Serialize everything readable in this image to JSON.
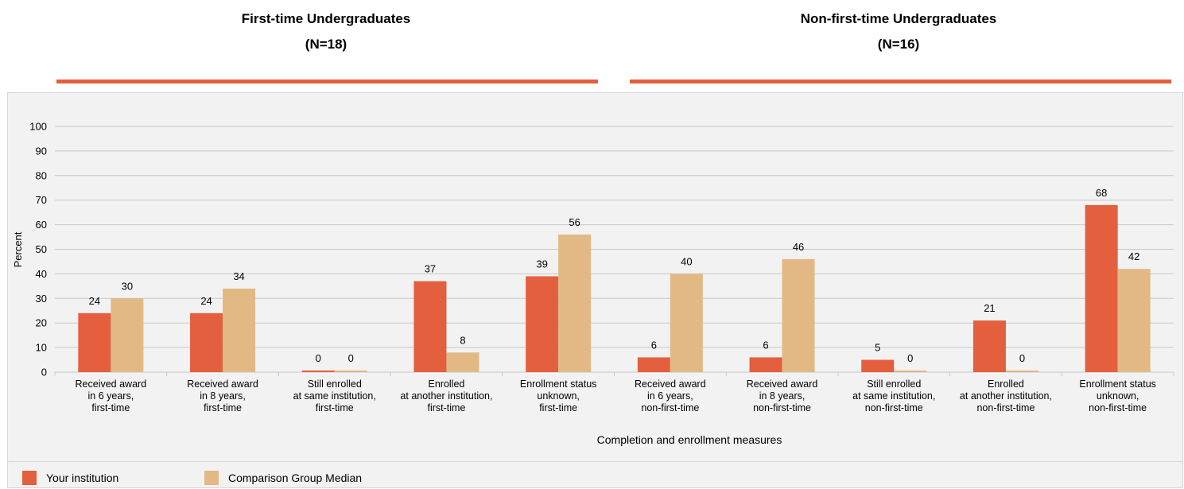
{
  "headings": {
    "left_title": "First-time Undergraduates",
    "left_n": "(N=18)",
    "right_title": "Non-first-time Undergraduates",
    "right_n": "(N=16)"
  },
  "legend": {
    "series_a": "Your institution",
    "series_b": "Comparison Group Median"
  },
  "colors": {
    "series_a": "#e35f3e",
    "series_b": "#e2b985",
    "rule": "#e35f3e",
    "grid": "#c8c8c8"
  },
  "chart_data": {
    "type": "bar",
    "title": "",
    "xlabel": "Completion and enrollment measures",
    "ylabel": "Percent",
    "ylim": [
      0,
      100
    ],
    "yticks": [
      0,
      10,
      20,
      30,
      40,
      50,
      60,
      70,
      80,
      90,
      100
    ],
    "grid": true,
    "legend_position": "bottom-left",
    "categories": [
      [
        "Received award",
        "in 6 years,",
        "first-time"
      ],
      [
        "Received award",
        "in 8 years,",
        "first-time"
      ],
      [
        "Still enrolled",
        "at same institution,",
        "first-time"
      ],
      [
        "Enrolled",
        "at another institution,",
        "first-time"
      ],
      [
        "Enrollment status",
        "unknown,",
        "first-time"
      ],
      [
        "Received award",
        "in 6 years,",
        "non-first-time"
      ],
      [
        "Received award",
        "in 8 years,",
        "non-first-time"
      ],
      [
        "Still enrolled",
        "at same institution,",
        "non-first-time"
      ],
      [
        "Enrolled",
        "at another institution,",
        "non-first-time"
      ],
      [
        "Enrollment status",
        "unknown,",
        "non-first-time"
      ]
    ],
    "series": [
      {
        "name": "Your institution",
        "values": [
          24,
          24,
          0,
          37,
          39,
          6,
          6,
          5,
          21,
          68
        ]
      },
      {
        "name": "Comparison Group Median",
        "values": [
          30,
          34,
          0,
          8,
          56,
          40,
          46,
          0,
          0,
          42
        ]
      }
    ]
  }
}
